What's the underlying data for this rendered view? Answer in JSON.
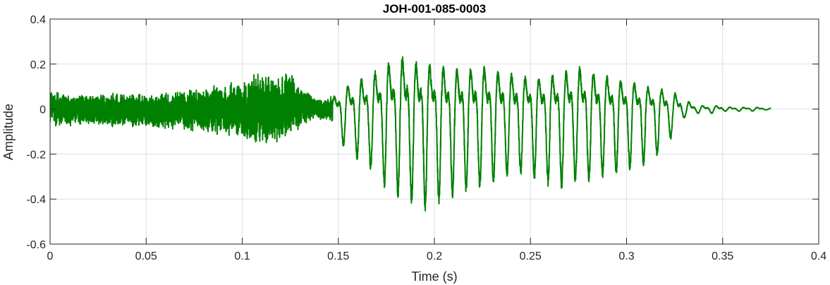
{
  "chart_data": {
    "type": "line",
    "title": "JOH-001-085-0003",
    "xlabel": "Time (s)",
    "ylabel": "Amplitude",
    "xlim": [
      0,
      0.4
    ],
    "ylim": [
      -0.6,
      0.4
    ],
    "grid": true,
    "x_ticks": [
      0,
      0.05,
      0.1,
      0.15,
      0.2,
      0.25,
      0.3,
      0.35,
      0.4
    ],
    "x_tick_labels": [
      "0",
      "0.05",
      "0.1",
      "0.15",
      "0.2",
      "0.25",
      "0.3",
      "0.35",
      "0.4"
    ],
    "y_ticks": [
      0.4,
      0.2,
      0,
      -0.2,
      -0.4,
      -0.6
    ],
    "y_tick_labels": [
      "0.4",
      "0.2",
      "0",
      "-0.2",
      "-0.4",
      "-0.6"
    ],
    "series": [
      {
        "color": "#008000",
        "line_width": 2,
        "x": [
          0,
          0.005,
          0.01,
          0.02,
          0.03,
          0.04,
          0.05,
          0.06,
          0.07,
          0.08,
          0.09,
          0.1,
          0.105,
          0.11,
          0.115,
          0.12,
          0.125,
          0.13,
          0.135,
          0.14,
          0.145,
          0.15,
          0.155,
          0.16,
          0.165,
          0.17,
          0.175,
          0.18,
          0.185,
          0.19,
          0.195,
          0.2,
          0.205,
          0.21,
          0.215,
          0.22,
          0.225,
          0.23,
          0.235,
          0.24,
          0.245,
          0.25,
          0.255,
          0.26,
          0.265,
          0.27,
          0.275,
          0.28,
          0.285,
          0.29,
          0.295,
          0.3,
          0.305,
          0.31,
          0.315,
          0.32,
          0.325,
          0.33,
          0.335,
          0.34,
          0.345,
          0.35,
          0.355,
          0.36,
          0.365,
          0.37,
          0.375
        ],
        "upper": [
          0.09,
          0.07,
          0.07,
          0.07,
          0.07,
          0.07,
          0.07,
          0.08,
          0.09,
          0.1,
          0.12,
          0.13,
          0.16,
          0.17,
          0.15,
          0.17,
          0.18,
          0.1,
          0.08,
          0.05,
          0.05,
          0.1,
          0.15,
          0.18,
          0.2,
          0.24,
          0.28,
          0.31,
          0.33,
          0.29,
          0.28,
          0.27,
          0.26,
          0.25,
          0.24,
          0.25,
          0.26,
          0.24,
          0.23,
          0.22,
          0.21,
          0.2,
          0.2,
          0.21,
          0.22,
          0.24,
          0.26,
          0.24,
          0.22,
          0.2,
          0.18,
          0.17,
          0.16,
          0.14,
          0.13,
          0.12,
          0.1,
          0.06,
          0.03,
          0.02,
          0.02,
          0.02,
          0.01,
          0.01,
          0.01,
          0.01,
          0.005
        ],
        "lower": [
          -0.06,
          -0.09,
          -0.08,
          -0.07,
          -0.08,
          -0.08,
          -0.09,
          -0.09,
          -0.1,
          -0.11,
          -0.12,
          -0.13,
          -0.15,
          -0.16,
          -0.16,
          -0.17,
          -0.13,
          -0.09,
          -0.06,
          -0.05,
          -0.05,
          -0.14,
          -0.2,
          -0.23,
          -0.26,
          -0.3,
          -0.37,
          -0.39,
          -0.43,
          -0.44,
          -0.46,
          -0.44,
          -0.42,
          -0.4,
          -0.39,
          -0.37,
          -0.36,
          -0.34,
          -0.32,
          -0.3,
          -0.3,
          -0.31,
          -0.33,
          -0.35,
          -0.36,
          -0.35,
          -0.34,
          -0.33,
          -0.32,
          -0.3,
          -0.3,
          -0.28,
          -0.27,
          -0.25,
          -0.22,
          -0.19,
          -0.1,
          -0.04,
          -0.02,
          -0.02,
          -0.02,
          -0.01,
          -0.01,
          -0.01,
          -0.01,
          -0.005,
          -0.003
        ]
      }
    ]
  }
}
